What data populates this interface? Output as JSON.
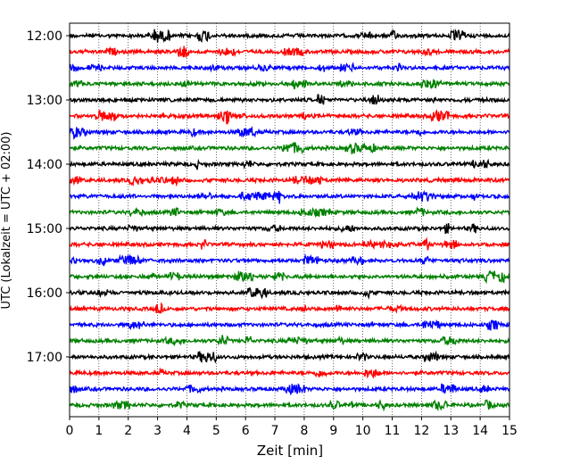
{
  "chart_data": {
    "type": "line",
    "title": "",
    "xlabel": "Zeit  [min]",
    "ylabel": "UTC (Lokalzeit = UTC + 02:00)",
    "xlim": [
      0,
      15
    ],
    "x_ticks": [
      "0",
      "1",
      "2",
      "3",
      "4",
      "5",
      "6",
      "7",
      "8",
      "9",
      "10",
      "11",
      "12",
      "13",
      "14",
      "15"
    ],
    "y_ticks": [
      "12:00",
      "13:00",
      "14:00",
      "15:00",
      "16:00",
      "17:00"
    ],
    "grid": "vertical dotted",
    "trace_colors": [
      "#000000",
      "#ff0000",
      "#0000ff",
      "#008000"
    ],
    "series": [
      {
        "start": "12:00",
        "color": "#000000"
      },
      {
        "start": "12:15",
        "color": "#ff0000"
      },
      {
        "start": "12:30",
        "color": "#0000ff"
      },
      {
        "start": "12:45",
        "color": "#008000"
      },
      {
        "start": "13:00",
        "color": "#000000"
      },
      {
        "start": "13:15",
        "color": "#ff0000"
      },
      {
        "start": "13:30",
        "color": "#0000ff"
      },
      {
        "start": "13:45",
        "color": "#008000"
      },
      {
        "start": "14:00",
        "color": "#000000"
      },
      {
        "start": "14:15",
        "color": "#ff0000"
      },
      {
        "start": "14:30",
        "color": "#0000ff"
      },
      {
        "start": "14:45",
        "color": "#008000"
      },
      {
        "start": "15:00",
        "color": "#000000"
      },
      {
        "start": "15:15",
        "color": "#ff0000"
      },
      {
        "start": "15:30",
        "color": "#0000ff"
      },
      {
        "start": "15:45",
        "color": "#008000"
      },
      {
        "start": "16:00",
        "color": "#000000"
      },
      {
        "start": "16:15",
        "color": "#ff0000"
      },
      {
        "start": "16:30",
        "color": "#0000ff"
      },
      {
        "start": "16:45",
        "color": "#008000"
      },
      {
        "start": "17:00",
        "color": "#000000"
      },
      {
        "start": "17:15",
        "color": "#ff0000"
      },
      {
        "start": "17:30",
        "color": "#0000ff"
      },
      {
        "start": "17:45",
        "color": "#008000"
      }
    ]
  }
}
